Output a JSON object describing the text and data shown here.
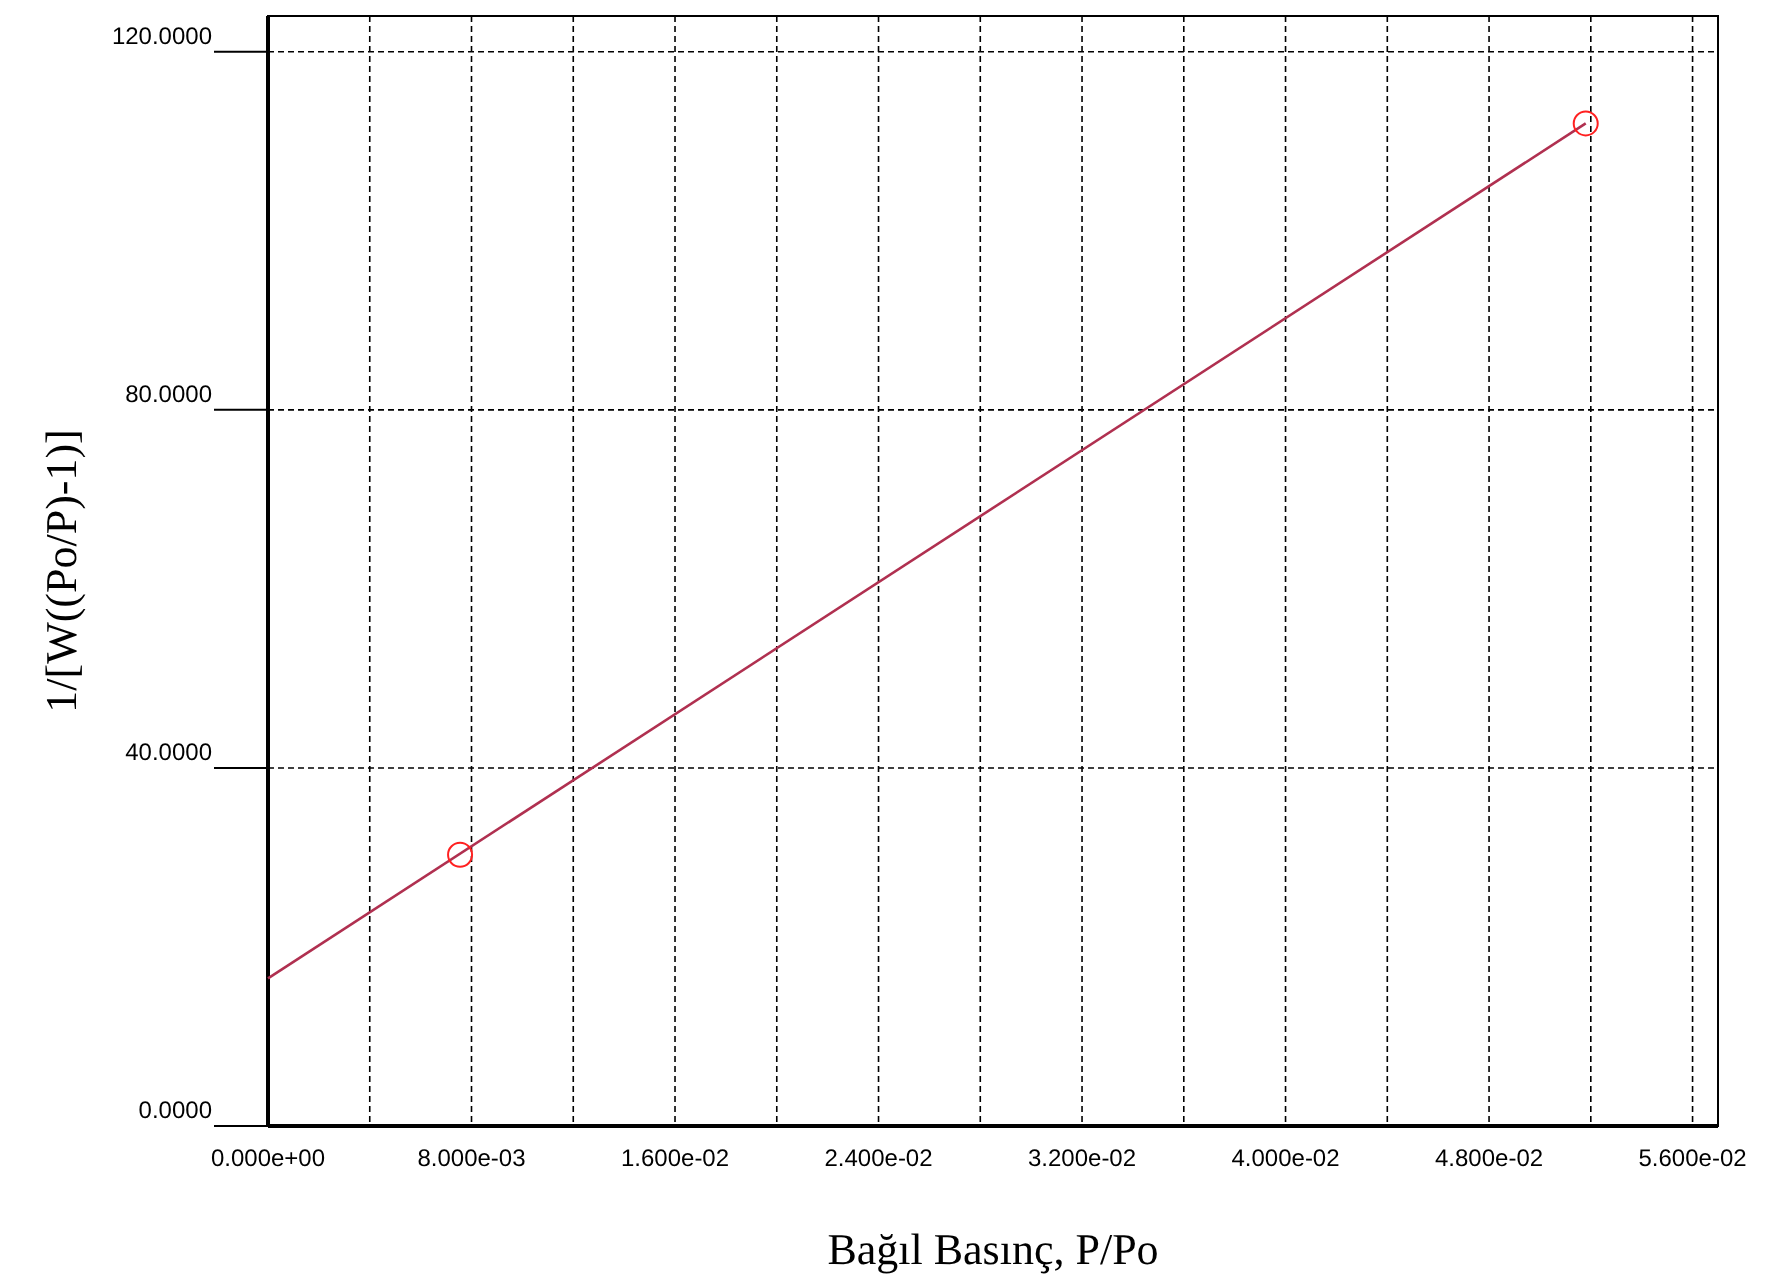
{
  "chart_data": {
    "type": "scatter",
    "xlabel": "Bağıl Basınç, P/Po",
    "ylabel": "1/[W((Po/P)-1)]",
    "xlim": [
      0,
      0.057
    ],
    "ylim": [
      0,
      124
    ],
    "xticks": [
      {
        "value": 0,
        "label": "0.000e+00"
      },
      {
        "value": 0.004,
        "label": null
      },
      {
        "value": 0.008,
        "label": "8.000e-03"
      },
      {
        "value": 0.012,
        "label": null
      },
      {
        "value": 0.016,
        "label": "1.600e-02"
      },
      {
        "value": 0.02,
        "label": null
      },
      {
        "value": 0.024,
        "label": "2.400e-02"
      },
      {
        "value": 0.028,
        "label": null
      },
      {
        "value": 0.032,
        "label": "3.200e-02"
      },
      {
        "value": 0.036,
        "label": null
      },
      {
        "value": 0.04,
        "label": "4.000e-02"
      },
      {
        "value": 0.044,
        "label": null
      },
      {
        "value": 0.048,
        "label": "4.800e-02"
      },
      {
        "value": 0.052,
        "label": null
      },
      {
        "value": 0.056,
        "label": "5.600e-02"
      }
    ],
    "yticks": [
      {
        "value": 0,
        "label": "0.0000"
      },
      {
        "value": 40,
        "label": "40.0000"
      },
      {
        "value": 80,
        "label": "80.0000"
      },
      {
        "value": 120,
        "label": "120.0000"
      }
    ],
    "grid": true,
    "marker": "circle",
    "series": [
      {
        "type": "line",
        "color": "#b03050",
        "marker": "none",
        "x": [
          0,
          0.0518
        ],
        "values": [
          16.5,
          112.0
        ]
      },
      {
        "type": "scatter",
        "color": "#ff2020",
        "x": [
          0.00755,
          0.0518
        ],
        "values": [
          30.3,
          112.0
        ]
      }
    ]
  }
}
